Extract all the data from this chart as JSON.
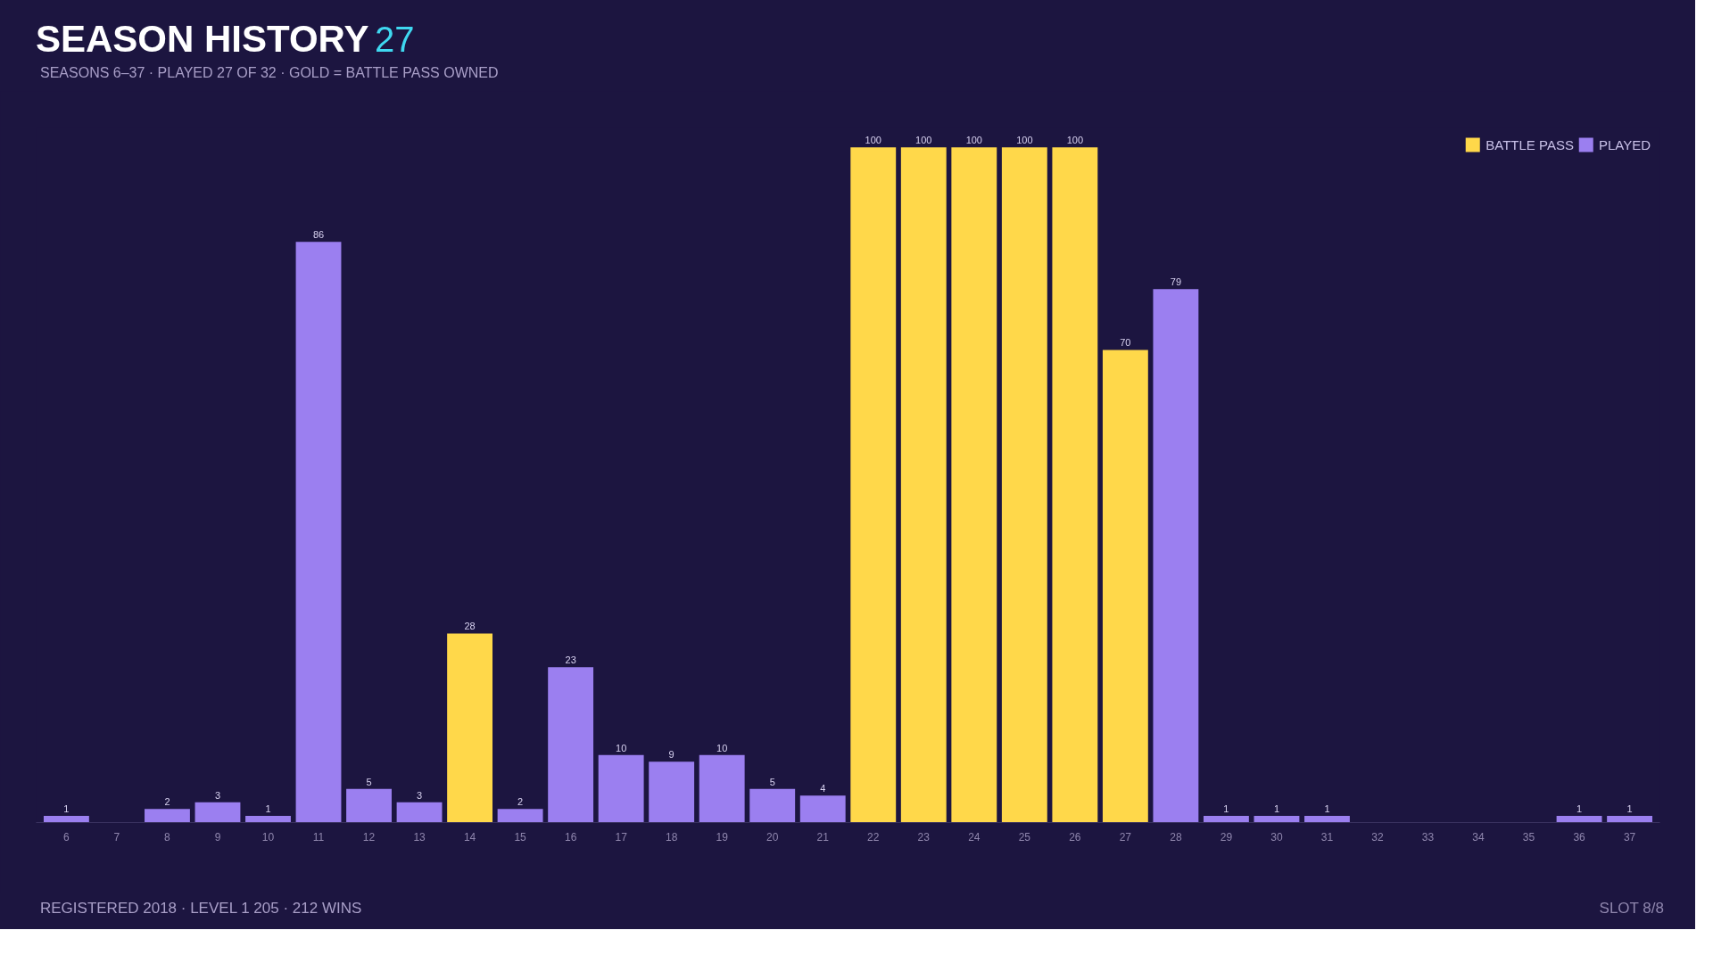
{
  "chart_data": {
    "type": "bar",
    "title": "SEASON HISTORY",
    "subtitle": "SEASONS 6–37 · PLAYED 27 OF 32 · GOLD = BATTLE PASS OWNED",
    "categories": [
      "6",
      "7",
      "8",
      "9",
      "10",
      "11",
      "12",
      "13",
      "14",
      "15",
      "16",
      "17",
      "18",
      "19",
      "20",
      "21",
      "22",
      "23",
      "24",
      "25",
      "26",
      "27",
      "28",
      "29",
      "30",
      "31",
      "32",
      "33",
      "34",
      "35",
      "36",
      "37"
    ],
    "series": [
      {
        "name": "BATTLE PASS",
        "color": "#ffd84a",
        "values": [
          null,
          null,
          null,
          null,
          null,
          null,
          null,
          null,
          28,
          null,
          null,
          null,
          null,
          null,
          null,
          null,
          100,
          100,
          100,
          100,
          100,
          70,
          null,
          null,
          null,
          null,
          null,
          null,
          null,
          null,
          null,
          null
        ]
      },
      {
        "name": "PLAYED",
        "color": "#9b7ff0",
        "values": [
          1,
          null,
          2,
          3,
          1,
          86,
          5,
          3,
          null,
          2,
          23,
          10,
          9,
          10,
          5,
          4,
          null,
          null,
          null,
          null,
          null,
          null,
          79,
          1,
          1,
          1,
          null,
          null,
          null,
          null,
          1,
          1
        ]
      }
    ],
    "grid": false,
    "legend": "top right",
    "tick_labels": "x",
    "data_labels": true,
    "annotations": [
      "27",
      "REGISTERED 2018 · LEVEL 1 205 · 212 WINS",
      "SLOT 8/8"
    ]
  }
}
